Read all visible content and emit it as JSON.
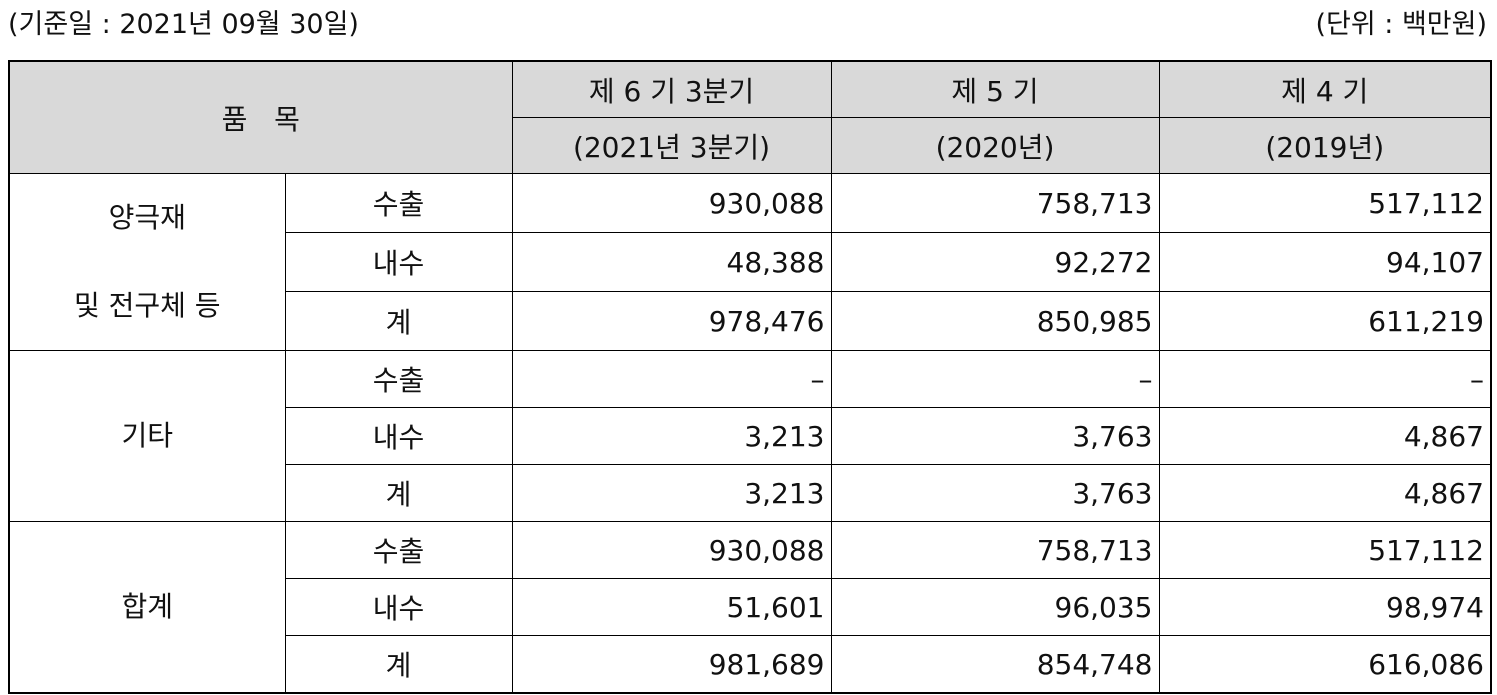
{
  "header": {
    "date": "(기준일 : 2021년 09월 30일)",
    "unit": "(단위 : 백만원)"
  },
  "table": {
    "item_header": "품   목",
    "columns": [
      {
        "period": "제 6 기 3분기",
        "year": "(2021년 3분기)"
      },
      {
        "period": "제 5 기",
        "year": "(2020년)"
      },
      {
        "period": "제 4 기",
        "year": "(2019년)"
      }
    ],
    "groups": [
      {
        "label": [
          "양극재",
          "및 전구체 등"
        ],
        "rows": [
          {
            "label": "수출",
            "values": [
              "930,088",
              "758,713",
              "517,112"
            ]
          },
          {
            "label": "내수",
            "values": [
              "48,388",
              "92,272",
              "94,107"
            ]
          },
          {
            "label": "계",
            "values": [
              "978,476",
              "850,985",
              "611,219"
            ]
          }
        ]
      },
      {
        "label": [
          "기타"
        ],
        "rows": [
          {
            "label": "수출",
            "values": [
              "–",
              "–",
              "–"
            ]
          },
          {
            "label": "내수",
            "values": [
              "3,213",
              "3,763",
              "4,867"
            ]
          },
          {
            "label": "계",
            "values": [
              "3,213",
              "3,763",
              "4,867"
            ]
          }
        ]
      },
      {
        "label": [
          "합계"
        ],
        "rows": [
          {
            "label": "수출",
            "values": [
              "930,088",
              "758,713",
              "517,112"
            ]
          },
          {
            "label": "내수",
            "values": [
              "51,601",
              "96,035",
              "98,974"
            ]
          },
          {
            "label": "계",
            "values": [
              "981,689",
              "854,748",
              "616,086"
            ]
          }
        ]
      }
    ]
  }
}
